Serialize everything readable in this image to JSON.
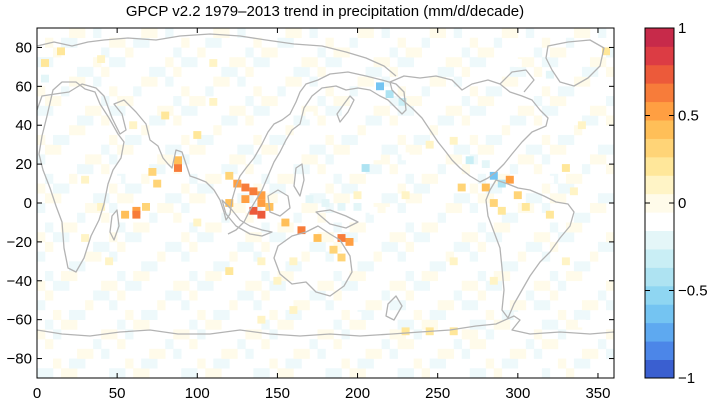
{
  "chart_data": {
    "type": "heatmap",
    "title": "GPCP v2.2 1979–2013 trend in precipitation (mm/d/decade)",
    "xlabel": "",
    "ylabel": "",
    "xlim": [
      0,
      360
    ],
    "ylim": [
      -90,
      90
    ],
    "x_ticks": [
      0,
      50,
      100,
      150,
      200,
      250,
      300,
      350
    ],
    "y_ticks": [
      80,
      60,
      40,
      20,
      0,
      -20,
      -40,
      -60,
      -80
    ],
    "grid": false,
    "colorbar": {
      "range": [
        -1,
        1
      ],
      "ticks": [
        1,
        0.5,
        0,
        -0.5,
        -1
      ],
      "tick_labels": [
        "1",
        "0.5",
        "0",
        "−0.5",
        "−1"
      ],
      "colors": [
        "#3a5fd0",
        "#4c86e8",
        "#5ea9f0",
        "#74c4f2",
        "#8fd6f2",
        "#aee3f2",
        "#c9eef5",
        "#e4f6f8",
        "#ffffff",
        "#fffbea",
        "#fff4c6",
        "#ffe79a",
        "#ffd477",
        "#ffbf58",
        "#ff9f42",
        "#f77c3a",
        "#ec5a3a",
        "#dc3c44",
        "#c72a4a"
      ]
    },
    "trend_cells": [
      {
        "lon": 15,
        "lat": 78,
        "value": 0.25
      },
      {
        "lon": 5,
        "lat": 72,
        "value": 0.2
      },
      {
        "lon": 355,
        "lat": 78,
        "value": 0.2
      },
      {
        "lon": 40,
        "lat": 74,
        "value": 0.15
      },
      {
        "lon": 5,
        "lat": 64,
        "value": -0.2
      },
      {
        "lon": 300,
        "lat": 72,
        "value": -0.15
      },
      {
        "lon": 320,
        "lat": 66,
        "value": -0.2
      },
      {
        "lon": 88,
        "lat": 18,
        "value": 0.6
      },
      {
        "lon": 88,
        "lat": 22,
        "value": 0.45
      },
      {
        "lon": 72,
        "lat": 16,
        "value": 0.35
      },
      {
        "lon": 75,
        "lat": 10,
        "value": 0.3
      },
      {
        "lon": 62,
        "lat": -4,
        "value": 0.5
      },
      {
        "lon": 62,
        "lat": -6,
        "value": 0.65
      },
      {
        "lon": 55,
        "lat": -6,
        "value": 0.45
      },
      {
        "lon": 68,
        "lat": -2,
        "value": 0.3
      },
      {
        "lon": 120,
        "lat": 14,
        "value": 0.35
      },
      {
        "lon": 125,
        "lat": 10,
        "value": 0.55
      },
      {
        "lon": 130,
        "lat": 8,
        "value": 0.65
      },
      {
        "lon": 135,
        "lat": 6,
        "value": 0.6
      },
      {
        "lon": 140,
        "lat": 4,
        "value": 0.55
      },
      {
        "lon": 130,
        "lat": 2,
        "value": 0.5
      },
      {
        "lon": 120,
        "lat": 0,
        "value": 0.45
      },
      {
        "lon": 140,
        "lat": 0,
        "value": 0.5
      },
      {
        "lon": 145,
        "lat": -2,
        "value": 0.45
      },
      {
        "lon": 135,
        "lat": -4,
        "value": 0.7
      },
      {
        "lon": 140,
        "lat": -6,
        "value": 0.75
      },
      {
        "lon": 155,
        "lat": -10,
        "value": 0.45
      },
      {
        "lon": 165,
        "lat": -14,
        "value": 0.6
      },
      {
        "lon": 175,
        "lat": -18,
        "value": 0.4
      },
      {
        "lon": 190,
        "lat": -18,
        "value": 0.65
      },
      {
        "lon": 195,
        "lat": -20,
        "value": 0.5
      },
      {
        "lon": 185,
        "lat": -24,
        "value": 0.35
      },
      {
        "lon": 190,
        "lat": -28,
        "value": 0.3
      },
      {
        "lon": 160,
        "lat": -30,
        "value": 0.15
      },
      {
        "lon": 170,
        "lat": 2,
        "value": -0.2
      },
      {
        "lon": 180,
        "lat": 0,
        "value": -0.25
      },
      {
        "lon": 190,
        "lat": -2,
        "value": -0.2
      },
      {
        "lon": 200,
        "lat": -2,
        "value": -0.2
      },
      {
        "lon": 210,
        "lat": -4,
        "value": -0.15
      },
      {
        "lon": 220,
        "lat": -4,
        "value": -0.15
      },
      {
        "lon": 200,
        "lat": 4,
        "value": 0.15
      },
      {
        "lon": 230,
        "lat": 4,
        "value": 0.15
      },
      {
        "lon": 265,
        "lat": 8,
        "value": 0.3
      },
      {
        "lon": 280,
        "lat": 8,
        "value": 0.4
      },
      {
        "lon": 285,
        "lat": 14,
        "value": -0.6
      },
      {
        "lon": 290,
        "lat": 10,
        "value": -0.4
      },
      {
        "lon": 295,
        "lat": 12,
        "value": 0.55
      },
      {
        "lon": 300,
        "lat": 4,
        "value": 0.35
      },
      {
        "lon": 285,
        "lat": 0,
        "value": 0.35
      },
      {
        "lon": 290,
        "lat": -4,
        "value": 0.25
      },
      {
        "lon": 305,
        "lat": -2,
        "value": 0.2
      },
      {
        "lon": 320,
        "lat": -6,
        "value": 0.2
      },
      {
        "lon": 310,
        "lat": -12,
        "value": -0.15
      },
      {
        "lon": 270,
        "lat": 22,
        "value": -0.3
      },
      {
        "lon": 280,
        "lat": 20,
        "value": -0.2
      },
      {
        "lon": 320,
        "lat": 12,
        "value": -0.15
      },
      {
        "lon": 335,
        "lat": 6,
        "value": 0.15
      },
      {
        "lon": 330,
        "lat": 18,
        "value": 0.2
      },
      {
        "lon": 214,
        "lat": 60,
        "value": -0.6
      },
      {
        "lon": 220,
        "lat": 56,
        "value": -0.4
      },
      {
        "lon": 228,
        "lat": 52,
        "value": -0.3
      },
      {
        "lon": 205,
        "lat": 18,
        "value": -0.45
      },
      {
        "lon": 212,
        "lat": 24,
        "value": -0.15
      },
      {
        "lon": 230,
        "lat": 24,
        "value": -0.15
      },
      {
        "lon": 245,
        "lat": 30,
        "value": 0.15
      },
      {
        "lon": 260,
        "lat": 32,
        "value": 0.15
      },
      {
        "lon": 60,
        "lat": 40,
        "value": 0.15
      },
      {
        "lon": 80,
        "lat": 45,
        "value": 0.2
      },
      {
        "lon": 110,
        "lat": 52,
        "value": 0.15
      },
      {
        "lon": 100,
        "lat": 35,
        "value": 0.2
      },
      {
        "lon": 30,
        "lat": 12,
        "value": 0.15
      },
      {
        "lon": 40,
        "lat": -2,
        "value": 0.15
      },
      {
        "lon": 50,
        "lat": 12,
        "value": -0.15
      },
      {
        "lon": 30,
        "lat": -18,
        "value": 0.15
      },
      {
        "lon": 45,
        "lat": -30,
        "value": 0.15
      },
      {
        "lon": 100,
        "lat": -10,
        "value": 0.15
      },
      {
        "lon": 115,
        "lat": -22,
        "value": -0.15
      },
      {
        "lon": 120,
        "lat": -35,
        "value": 0.2
      },
      {
        "lon": 140,
        "lat": -30,
        "value": 0.15
      },
      {
        "lon": 150,
        "lat": -40,
        "value": 0.15
      },
      {
        "lon": 260,
        "lat": -30,
        "value": 0.1
      },
      {
        "lon": 285,
        "lat": -40,
        "value": 0.15
      },
      {
        "lon": 330,
        "lat": -30,
        "value": 0.15
      },
      {
        "lon": 20,
        "lat": -50,
        "value": -0.1
      },
      {
        "lon": 160,
        "lat": -55,
        "value": 0.15
      },
      {
        "lon": 200,
        "lat": -58,
        "value": -0.1
      },
      {
        "lon": 40,
        "lat": -60,
        "value": -0.15
      },
      {
        "lon": 80,
        "lat": -60,
        "value": -0.1
      },
      {
        "lon": 140,
        "lat": -60,
        "value": 0.15
      },
      {
        "lon": 230,
        "lat": -66,
        "value": 0.2
      },
      {
        "lon": 245,
        "lat": -66,
        "value": 0.25
      },
      {
        "lon": 260,
        "lat": -66,
        "value": 0.2
      },
      {
        "lon": 300,
        "lat": -58,
        "value": -0.1
      },
      {
        "lon": 340,
        "lat": -62,
        "value": -0.1
      },
      {
        "lon": 340,
        "lat": 40,
        "value": 0.1
      },
      {
        "lon": 320,
        "lat": 40,
        "value": -0.1
      },
      {
        "lon": 190,
        "lat": 40,
        "value": -0.1
      },
      {
        "lon": 170,
        "lat": 45,
        "value": -0.1
      },
      {
        "lon": 150,
        "lat": 40,
        "value": -0.15
      },
      {
        "lon": 110,
        "lat": 72,
        "value": 0.1
      },
      {
        "lon": 250,
        "lat": 72,
        "value": -0.1
      },
      {
        "lon": 350,
        "lat": -10,
        "value": -0.1
      }
    ]
  }
}
